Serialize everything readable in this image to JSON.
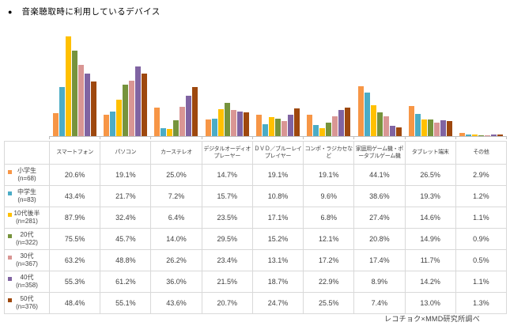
{
  "title": {
    "bullet": "●",
    "text": "音楽聴取時に利用しているデバイス"
  },
  "footer": {
    "credit": "レコチョク×MMD研究所調べ"
  },
  "axis": {
    "baseline_color": "#BFBFBF"
  },
  "table": {
    "border_color": "#D9D9D9",
    "text_color": "#404040",
    "value_suffix": "%"
  },
  "chart_data": {
    "type": "bar",
    "title": "音楽聴取時に利用しているデバイス",
    "categories": [
      "スマートフォン",
      "パソコン",
      "カーステレオ",
      "デジタルオーディオプレーヤー",
      "ＤＶＤ／ブルーレイプレイヤー",
      "コンポ・ラジカセなど",
      "家庭用ゲーム機・ポータブルゲーム機",
      "タブレット端末",
      "その他"
    ],
    "series": [
      {
        "name": "小学生",
        "n": "(n=68)",
        "color": "#F79646",
        "values": [
          20.6,
          19.1,
          25.0,
          14.7,
          19.1,
          19.1,
          44.1,
          26.5,
          2.9
        ]
      },
      {
        "name": "中学生",
        "n": "(n=83)",
        "color": "#4BACC6",
        "values": [
          43.4,
          21.7,
          7.2,
          15.7,
          10.8,
          9.6,
          38.6,
          19.3,
          1.2
        ]
      },
      {
        "name": "10代後半",
        "n": "(n=281)",
        "color": "#FFC000",
        "values": [
          87.9,
          32.4,
          6.4,
          23.5,
          17.1,
          6.8,
          27.4,
          14.6,
          1.1
        ]
      },
      {
        "name": "20代",
        "n": "(n=322)",
        "color": "#76933C",
        "values": [
          75.5,
          45.7,
          14.0,
          29.5,
          15.2,
          12.1,
          20.8,
          14.9,
          0.9
        ]
      },
      {
        "name": "30代",
        "n": "(n=367)",
        "color": "#D99694",
        "values": [
          63.2,
          48.8,
          26.2,
          23.4,
          13.1,
          17.2,
          17.4,
          11.7,
          0.5
        ]
      },
      {
        "name": "40代",
        "n": "(n=358)",
        "color": "#8064A2",
        "values": [
          55.3,
          61.2,
          36.0,
          21.5,
          18.7,
          22.9,
          8.9,
          14.2,
          1.1
        ]
      },
      {
        "name": "50代",
        "n": "(n=376)",
        "color": "#9E480E",
        "values": [
          48.4,
          55.1,
          43.6,
          20.7,
          24.7,
          25.5,
          7.4,
          13.0,
          1.3
        ]
      }
    ],
    "ylim": [
      0,
      100
    ],
    "value_format": "percent_one_decimal",
    "grid": false,
    "legend_position": "table-row-labels"
  }
}
